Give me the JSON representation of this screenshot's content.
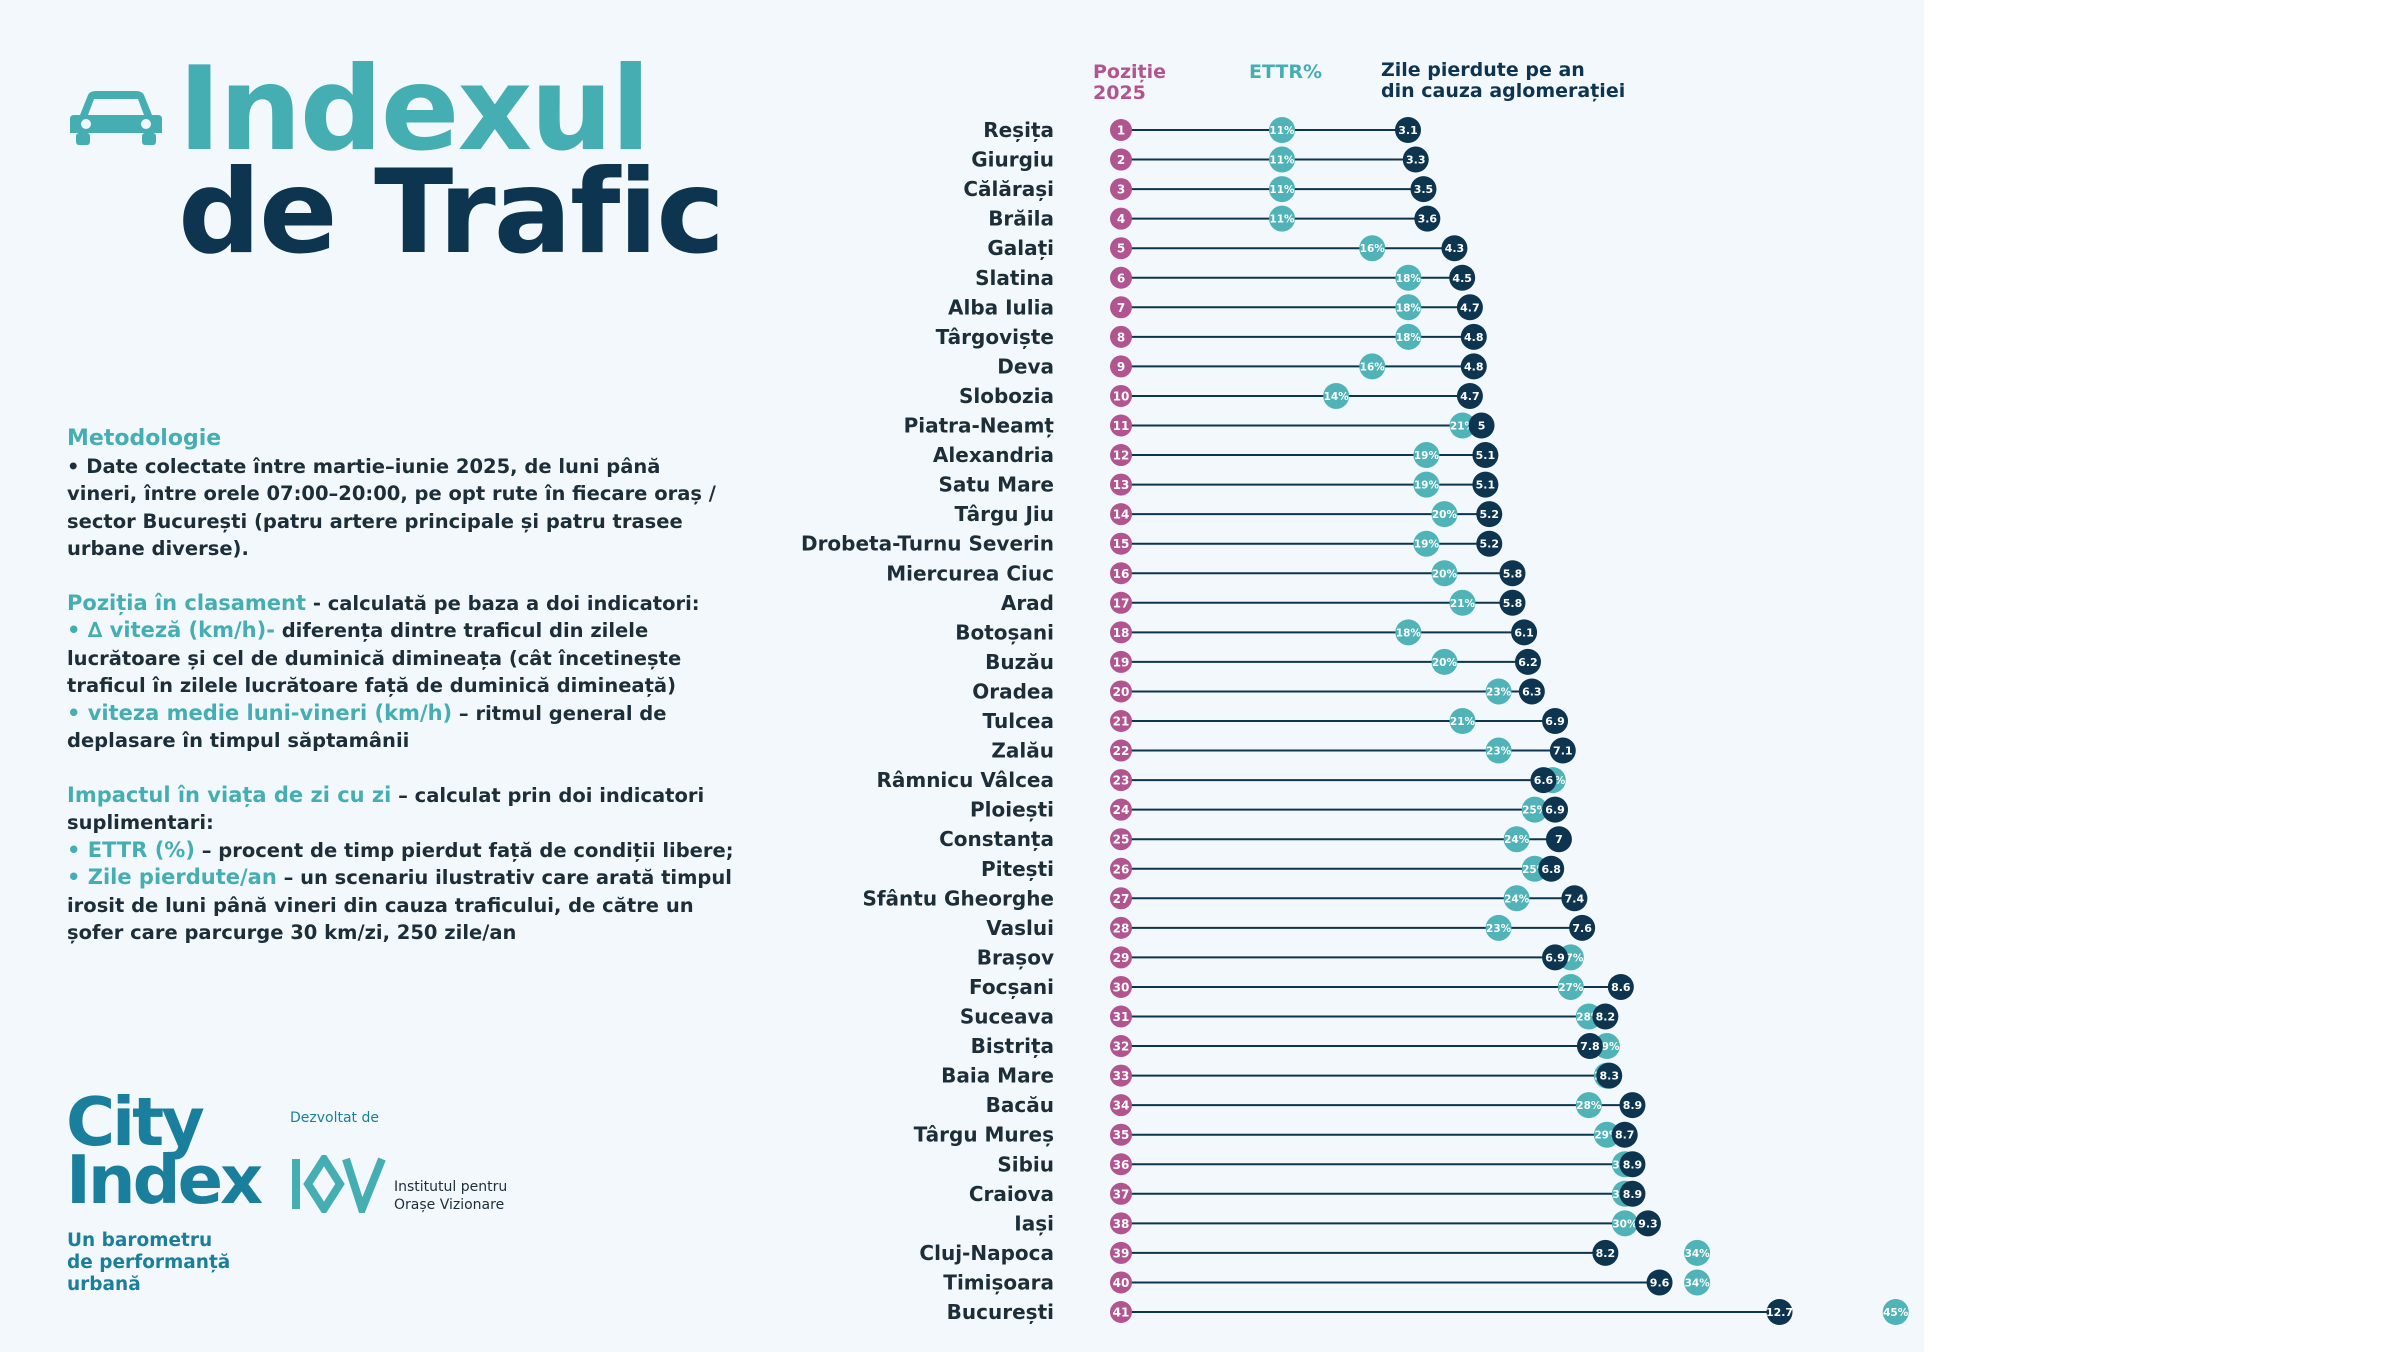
{
  "title": {
    "line1": "Indexul",
    "line2": "de Trafic"
  },
  "methodology": {
    "heading": "Metodologie",
    "intro": "• Date colectate între martie–iunie 2025, de luni până vineri, între orele 07:00–20:00, pe opt rute în fiecare oraș / sector București (patru artere principale și patru trasee urbane diverse).",
    "ranking_title": "Poziția în clasament",
    "ranking_text": " - calculată pe baza a doi indicatori:",
    "speed_title": "• ∆ viteză (km/h)-",
    "speed_text": " diferența dintre traficul din zilele lucrătoare și cel de duminică dimineața (cât încetinește traficul în zilele lucrătoare față de duminică dimineață)",
    "avg_title": "• viteza medie luni-vineri (km/h)",
    "avg_text": " – ritmul general de deplasare în timpul săptamânii",
    "impact_title": "Impactul în viața de zi cu zi",
    "impact_text": " – calculat prin doi indicatori suplimentari:",
    "ettr_title": "• ETTR (%)",
    "ettr_text": " – procent de timp pierdut față de condiții libere;",
    "days_title": "• Zile pierdute/an",
    "days_text": " – un scenariu ilustrativ care arată timpul irosit de luni până vineri din cauza traficului, de către un șofer care parcurge 30 km/zi, 250 zile/an"
  },
  "branding": {
    "city_line1": "City",
    "city_line2": "Index",
    "tagline1": "Un barometru",
    "tagline2": "de performanță",
    "tagline3": "urbană",
    "developed_by": "Dezvoltat de",
    "iov_line1": "Institutul pentru",
    "iov_line2": "Orașe Vizionare"
  },
  "headers": {
    "position1": "Poziție",
    "position2": "2025",
    "ettr": "ETTR%",
    "days1": "Zile pierdute pe an",
    "days2": "din cauza aglomerației"
  },
  "colors": {
    "position": "#b2548f",
    "ettr": "#4fb3b8",
    "days": "#0d3550",
    "title_teal": "#45aeb3",
    "line": "#0d3550"
  },
  "chart_data": {
    "type": "dot-plot",
    "series": [
      {
        "name": "Poziție 2025",
        "key": "rank"
      },
      {
        "name": "ETTR%",
        "key": "ettr"
      },
      {
        "name": "Zile pierdute pe an din cauza aglomerației",
        "key": "days"
      }
    ],
    "rows": [
      {
        "city": "Reșița",
        "rank": 1,
        "ettr": 11,
        "days": 3.1
      },
      {
        "city": "Giurgiu",
        "rank": 2,
        "ettr": 11,
        "days": 3.3
      },
      {
        "city": "Călărași",
        "rank": 3,
        "ettr": 11,
        "days": 3.5
      },
      {
        "city": "Brăila",
        "rank": 4,
        "ettr": 11,
        "days": 3.6
      },
      {
        "city": "Galați",
        "rank": 5,
        "ettr": 16,
        "days": 4.3
      },
      {
        "city": "Slatina",
        "rank": 6,
        "ettr": 18,
        "days": 4.5
      },
      {
        "city": "Alba Iulia",
        "rank": 7,
        "ettr": 18,
        "days": 4.7
      },
      {
        "city": "Târgoviște",
        "rank": 8,
        "ettr": 18,
        "days": 4.8
      },
      {
        "city": "Deva",
        "rank": 9,
        "ettr": 16,
        "days": 4.8
      },
      {
        "city": "Slobozia",
        "rank": 10,
        "ettr": 14,
        "days": 4.7
      },
      {
        "city": "Piatra-Neamț",
        "rank": 11,
        "ettr": 21,
        "days": 5
      },
      {
        "city": "Alexandria",
        "rank": 12,
        "ettr": 19,
        "days": 5.1
      },
      {
        "city": "Satu Mare",
        "rank": 13,
        "ettr": 19,
        "days": 5.1
      },
      {
        "city": "Târgu Jiu",
        "rank": 14,
        "ettr": 20,
        "days": 5.2
      },
      {
        "city": "Drobeta-Turnu Severin",
        "rank": 15,
        "ettr": 19,
        "days": 5.2
      },
      {
        "city": "Miercurea Ciuc",
        "rank": 16,
        "ettr": 20,
        "days": 5.8
      },
      {
        "city": "Arad",
        "rank": 17,
        "ettr": 21,
        "days": 5.8
      },
      {
        "city": "Botoșani",
        "rank": 18,
        "ettr": 18,
        "days": 6.1
      },
      {
        "city": "Buzău",
        "rank": 19,
        "ettr": 20,
        "days": 6.2
      },
      {
        "city": "Oradea",
        "rank": 20,
        "ettr": 23,
        "days": 6.3
      },
      {
        "city": "Tulcea",
        "rank": 21,
        "ettr": 21,
        "days": 6.9
      },
      {
        "city": "Zalău",
        "rank": 22,
        "ettr": 23,
        "days": 7.1
      },
      {
        "city": "Râmnicu Vâlcea",
        "rank": 23,
        "ettr": 26,
        "days": 6.6
      },
      {
        "city": "Ploiești",
        "rank": 24,
        "ettr": 25,
        "days": 6.9
      },
      {
        "city": "Constanța",
        "rank": 25,
        "ettr": 24,
        "days": 7
      },
      {
        "city": "Pitești",
        "rank": 26,
        "ettr": 25,
        "days": 6.8
      },
      {
        "city": "Sfântu Gheorghe",
        "rank": 27,
        "ettr": 24,
        "days": 7.4
      },
      {
        "city": "Vaslui",
        "rank": 28,
        "ettr": 23,
        "days": 7.6
      },
      {
        "city": "Brașov",
        "rank": 29,
        "ettr": 27,
        "days": 6.9
      },
      {
        "city": "Focșani",
        "rank": 30,
        "ettr": 27,
        "days": 8.6
      },
      {
        "city": "Suceava",
        "rank": 31,
        "ettr": 28,
        "days": 8.2
      },
      {
        "city": "Bistrița",
        "rank": 32,
        "ettr": 29,
        "days": 7.8
      },
      {
        "city": "Baia Mare",
        "rank": 33,
        "ettr": 29,
        "days": 8.3
      },
      {
        "city": "Bacău",
        "rank": 34,
        "ettr": 28,
        "days": 8.9
      },
      {
        "city": "Târgu Mureș",
        "rank": 35,
        "ettr": 29,
        "days": 8.7
      },
      {
        "city": "Sibiu",
        "rank": 36,
        "ettr": 30,
        "days": 8.9
      },
      {
        "city": "Craiova",
        "rank": 37,
        "ettr": 30,
        "days": 8.9
      },
      {
        "city": "Iași",
        "rank": 38,
        "ettr": 30,
        "days": 9.3
      },
      {
        "city": "Cluj-Napoca",
        "rank": 39,
        "ettr": 34,
        "days": 8.2
      },
      {
        "city": "Timișoara",
        "rank": 40,
        "ettr": 34,
        "days": 9.6
      },
      {
        "city": "București",
        "rank": 41,
        "ettr": 45,
        "days": 12.7
      }
    ]
  }
}
